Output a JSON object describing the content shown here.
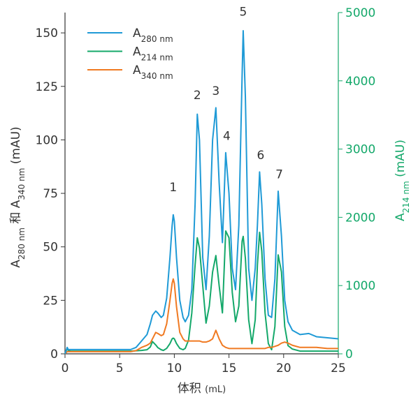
{
  "chart_data": {
    "type": "line",
    "x_label": [
      {
        "text": "体积 "
      },
      {
        "text": "(mL)",
        "small": true
      }
    ],
    "y_label": [
      {
        "text": "A"
      },
      {
        "text": "280 nm",
        "sub": true
      },
      {
        "text": " 和 A"
      },
      {
        "text": "340 nm",
        "sub": true
      },
      {
        "text": " (mAU)"
      }
    ],
    "y2_label": [
      {
        "text": "A"
      },
      {
        "text": "214 nm",
        "sub": true
      },
      {
        "text": " (mAU)"
      }
    ],
    "y2_color": "#14a86a",
    "xlim": [
      0,
      25
    ],
    "xticks": [
      0,
      5,
      10,
      15,
      20,
      25
    ],
    "ylim": [
      0,
      159.5
    ],
    "yticks": [
      0,
      25,
      50,
      75,
      100,
      125,
      150
    ],
    "y2lim": [
      0,
      5000
    ],
    "y2ticks": [
      0,
      1000,
      2000,
      3000,
      4000,
      5000
    ],
    "x": [
      0,
      0.2,
      0.3,
      0.5,
      1,
      3,
      5,
      6,
      6.5,
      7,
      7.5,
      7.8,
      8.0,
      8.3,
      8.5,
      8.8,
      9.0,
      9.3,
      9.6,
      9.8,
      9.9,
      10.0,
      10.2,
      10.5,
      10.8,
      11.0,
      11.3,
      11.6,
      11.9,
      12.1,
      12.3,
      12.6,
      12.9,
      13.2,
      13.5,
      13.8,
      14.1,
      14.4,
      14.7,
      15.0,
      15.3,
      15.6,
      15.9,
      16.2,
      16.3,
      16.5,
      16.8,
      17.1,
      17.4,
      17.6,
      17.8,
      18.0,
      18.3,
      18.6,
      18.9,
      19.2,
      19.5,
      19.8,
      20.1,
      20.4,
      20.8,
      21.5,
      22.3,
      23,
      24,
      25
    ],
    "series": [
      {
        "name": "A",
        "subscript": "280 nm",
        "color": "#1f9ad6",
        "values": [
          0,
          3,
          2,
          2,
          2,
          2,
          2,
          2,
          3,
          6,
          9,
          14,
          18,
          20,
          19,
          17,
          18,
          26,
          45,
          60,
          65,
          62,
          45,
          25,
          17,
          15,
          18,
          30,
          70,
          112,
          100,
          45,
          30,
          55,
          100,
          115,
          80,
          52,
          94,
          75,
          40,
          30,
          60,
          130,
          151,
          120,
          40,
          25,
          40,
          60,
          85,
          70,
          35,
          18,
          17,
          35,
          76,
          55,
          25,
          15,
          11,
          9,
          9.5,
          8,
          7.5,
          7
        ]
      },
      {
        "name": "A",
        "subscript": "214 nm",
        "color": "#14a86a",
        "axis": "y2",
        "values": [
          0,
          80,
          50,
          40,
          40,
          40,
          40,
          40,
          45,
          50,
          60,
          100,
          180,
          130,
          90,
          60,
          50,
          80,
          150,
          220,
          230,
          220,
          150,
          80,
          60,
          80,
          200,
          600,
          1300,
          1700,
          1550,
          1000,
          450,
          700,
          1200,
          1440,
          1000,
          600,
          1800,
          1700,
          900,
          470,
          700,
          1650,
          1720,
          1400,
          500,
          150,
          500,
          1300,
          1780,
          1500,
          600,
          150,
          60,
          400,
          1450,
          1200,
          400,
          120,
          70,
          40,
          40,
          40,
          40,
          40
        ]
      },
      {
        "name": "A",
        "subscript": "340 nm",
        "color": "#f07a22",
        "values": [
          0,
          1,
          1,
          1,
          1,
          1,
          1,
          1,
          1.5,
          3,
          4,
          5,
          7,
          10,
          9.5,
          8.5,
          9,
          14,
          25,
          33,
          35,
          33,
          22,
          10,
          7,
          6,
          6,
          6,
          6,
          6,
          6,
          5.5,
          5.5,
          6,
          7,
          11,
          7,
          4,
          3,
          2.5,
          2.5,
          2.5,
          2.5,
          2.5,
          2.5,
          2.5,
          2.5,
          2.5,
          2.5,
          2.5,
          2.5,
          2.5,
          2.5,
          3,
          3,
          3.5,
          4,
          5,
          5.5,
          5,
          4,
          3,
          3,
          3,
          2.5,
          2.5
        ]
      }
    ],
    "annotations": [
      {
        "text": "1",
        "x": 9.9,
        "y": 76
      },
      {
        "text": "2",
        "x": 12.1,
        "y": 119
      },
      {
        "text": "3",
        "x": 13.8,
        "y": 121
      },
      {
        "text": "4",
        "x": 14.8,
        "y": 100
      },
      {
        "text": "5",
        "x": 16.3,
        "y": 158
      },
      {
        "text": "6",
        "x": 17.9,
        "y": 91
      },
      {
        "text": "7",
        "x": 19.6,
        "y": 82
      }
    ]
  }
}
